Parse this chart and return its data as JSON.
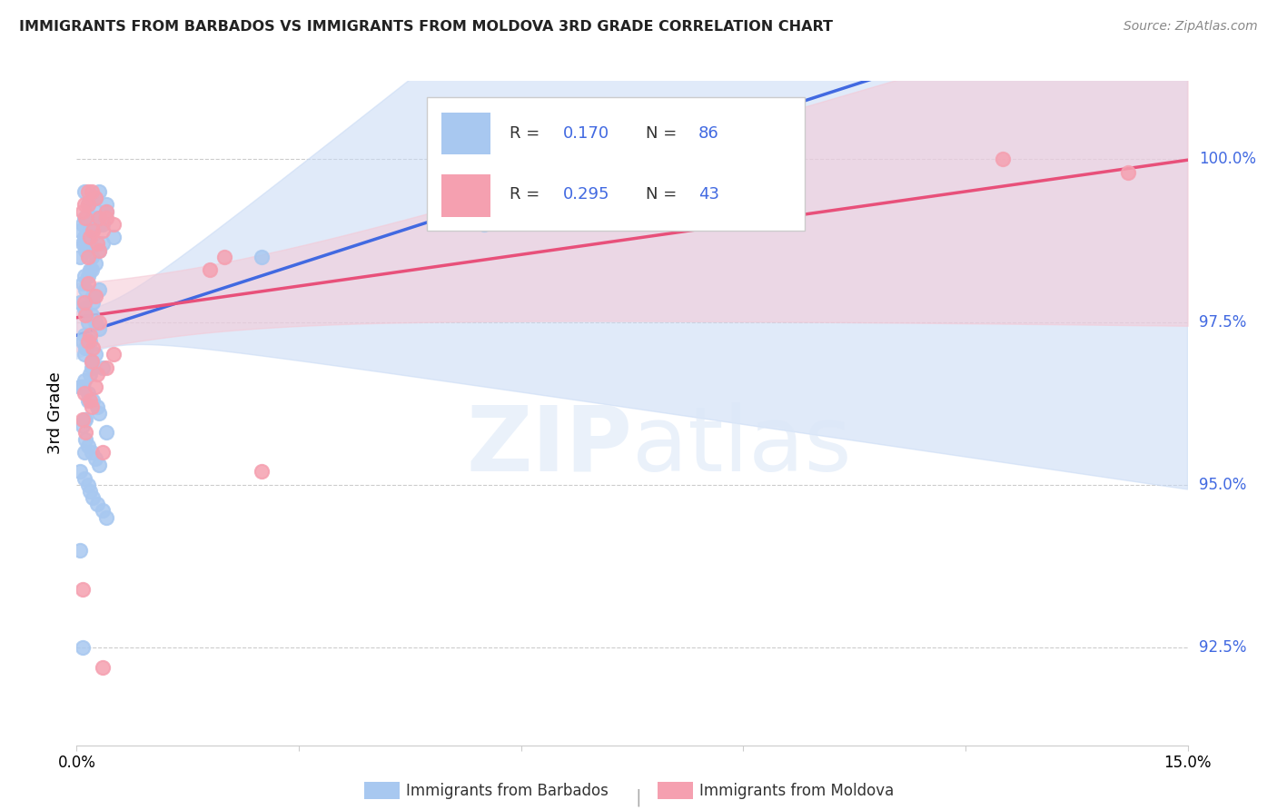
{
  "title": "IMMIGRANTS FROM BARBADOS VS IMMIGRANTS FROM MOLDOVA 3RD GRADE CORRELATION CHART",
  "source": "Source: ZipAtlas.com",
  "ylabel_label": "3rd Grade",
  "yaxis_ticks": [
    92.5,
    95.0,
    97.5,
    100.0
  ],
  "xmin": 0.0,
  "xmax": 15.0,
  "ymin": 91.0,
  "ymax": 101.2,
  "barbados_color": "#a8c8f0",
  "moldova_color": "#f5a0b0",
  "barbados_line_color": "#4169e1",
  "moldova_line_color": "#e8507a",
  "barbados_ci_color": "#c8daf5",
  "moldova_ci_color": "#f5c8d5",
  "R_barbados": 0.17,
  "N_barbados": 86,
  "R_moldova": 0.295,
  "N_moldova": 43,
  "legend_label_1": "Immigrants from Barbados",
  "legend_label_2": "Immigrants from Moldova",
  "barbados_x": [
    0.1,
    0.2,
    0.15,
    0.3,
    0.25,
    0.4,
    0.5,
    0.35,
    0.1,
    0.05,
    0.08,
    0.12,
    0.18,
    0.22,
    0.28,
    0.15,
    0.1,
    0.2,
    0.3,
    0.25,
    0.4,
    0.12,
    0.08,
    0.15,
    0.2,
    0.1,
    0.05,
    0.3,
    0.35,
    0.2,
    0.25,
    0.18,
    0.1,
    0.08,
    0.12,
    0.22,
    0.05,
    0.1,
    0.2,
    0.15,
    0.3,
    0.1,
    0.08,
    0.12,
    0.25,
    0.2,
    0.35,
    0.18,
    0.1,
    0.05,
    0.15,
    0.22,
    0.28,
    0.3,
    0.1,
    0.08,
    0.4,
    0.12,
    0.15,
    0.2,
    0.25,
    0.3,
    0.05,
    0.1,
    0.15,
    0.18,
    0.22,
    0.28,
    0.35,
    0.4,
    5.5,
    2.5,
    0.2,
    0.15,
    0.1,
    0.08,
    0.12,
    0.25,
    0.3,
    0.2,
    0.18,
    0.22,
    0.15,
    0.1,
    0.05,
    0.08
  ],
  "barbados_y": [
    99.5,
    99.4,
    99.3,
    99.5,
    99.4,
    99.2,
    98.8,
    99.0,
    99.1,
    98.9,
    99.0,
    98.8,
    98.9,
    99.1,
    99.2,
    98.7,
    98.8,
    98.9,
    99.0,
    99.1,
    99.3,
    98.6,
    98.7,
    98.8,
    98.9,
    98.7,
    98.5,
    98.6,
    98.7,
    98.5,
    98.4,
    98.3,
    98.2,
    98.1,
    98.0,
    97.9,
    97.8,
    97.7,
    97.6,
    97.5,
    97.4,
    97.3,
    97.2,
    97.1,
    97.0,
    96.9,
    96.8,
    96.7,
    96.6,
    96.5,
    96.4,
    96.3,
    96.2,
    96.1,
    96.0,
    95.9,
    95.8,
    95.7,
    95.6,
    95.5,
    95.4,
    95.3,
    95.2,
    95.1,
    95.0,
    94.9,
    94.8,
    94.7,
    94.6,
    94.5,
    99.0,
    98.5,
    98.3,
    98.2,
    97.0,
    96.5,
    96.0,
    97.5,
    98.0,
    96.8,
    97.2,
    97.8,
    96.3,
    95.5,
    94.0,
    92.5
  ],
  "moldova_x": [
    0.15,
    0.3,
    0.25,
    0.4,
    0.5,
    0.2,
    0.1,
    0.35,
    0.12,
    0.08,
    0.18,
    0.22,
    0.28,
    0.15,
    0.1,
    0.3,
    0.25,
    0.2,
    0.15,
    0.4,
    0.12,
    0.08,
    0.5,
    0.35,
    0.18,
    0.22,
    0.28,
    2.0,
    1.8,
    14.2,
    12.5,
    0.15,
    0.3,
    0.25,
    0.2,
    0.18,
    0.15,
    0.12,
    0.1,
    0.08,
    0.35,
    2.5,
    0.4
  ],
  "moldova_y": [
    99.3,
    99.1,
    99.4,
    99.2,
    99.0,
    99.5,
    99.3,
    98.9,
    99.1,
    99.2,
    98.8,
    98.9,
    98.7,
    98.5,
    97.8,
    97.5,
    96.5,
    96.2,
    97.2,
    96.8,
    95.8,
    96.0,
    97.0,
    95.5,
    96.3,
    97.1,
    96.7,
    98.5,
    98.3,
    99.8,
    100.0,
    99.5,
    98.6,
    97.9,
    96.9,
    97.3,
    98.1,
    97.6,
    96.4,
    93.4,
    92.2,
    95.2,
    99.1
  ]
}
